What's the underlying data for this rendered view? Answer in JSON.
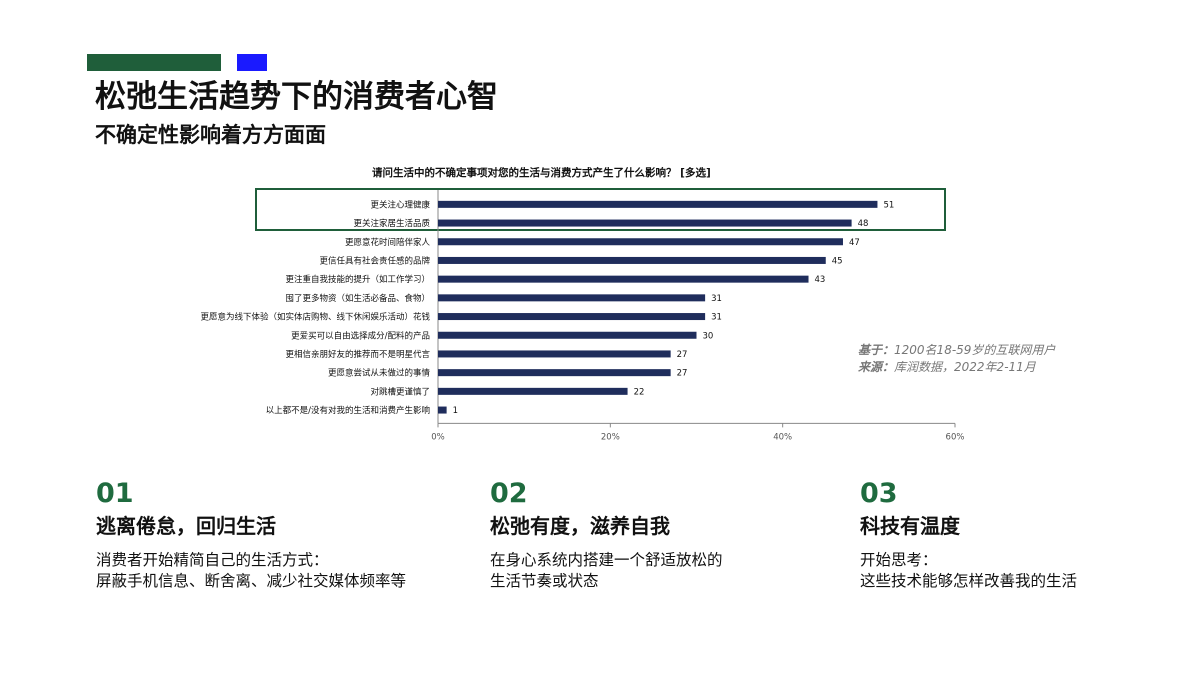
{
  "header": {
    "title": "松弛生活趋势下的消费者心智",
    "subtitle": "不确定性影响着方方面面"
  },
  "colors": {
    "accent_green": "#1f5e3a",
    "accent_blue": "#1a1aff",
    "bar": "#1f2d5c",
    "number_green": "#1f6b3f"
  },
  "note": {
    "base_label": "基于：",
    "base_text": "1200名18-59岁的互联网用户",
    "source_label": "来源：",
    "source_text": "库润数据，2022年2-11月"
  },
  "chart_data": {
    "type": "bar",
    "orientation": "horizontal",
    "title": "请问生活中的不确定事项对您的生活与消费方式产生了什么影响？ [多选]",
    "categories": [
      "更关注心理健康",
      "更关注家居生活品质",
      "更愿意花时间陪伴家人",
      "更信任具有社会责任感的品牌",
      "更注重自我技能的提升（如工作学习）",
      "囤了更多物资（如生活必备品、食物）",
      "更愿意为线下体验（如实体店购物、线下休闲娱乐活动）花钱",
      "更爱买可以自由选择成分/配料的产品",
      "更相信亲朋好友的推荐而不是明星代言",
      "更愿意尝试从未做过的事情",
      "对跳槽更谨慎了",
      "以上都不是/没有对我的生活和消费产生影响"
    ],
    "values": [
      51,
      48,
      47,
      45,
      43,
      31,
      31,
      30,
      27,
      27,
      22,
      1
    ],
    "xlim": [
      0,
      60
    ],
    "xticks": [
      "0%",
      "20%",
      "40%",
      "60%"
    ],
    "highlight": "top-2 rows boxed in green",
    "grid": false
  },
  "columns": [
    {
      "num": "01",
      "head": "逃离倦怠，回归生活",
      "line1": "消费者开始精简自己的生活方式：",
      "line2": "屏蔽手机信息、断舍离、减少社交媒体频率等"
    },
    {
      "num": "02",
      "head": "松弛有度，滋养自我",
      "line1": "在身心系统内搭建一个舒适放松的",
      "line2": "生活节奏或状态"
    },
    {
      "num": "03",
      "head": "科技有温度",
      "line1": "开始思考：",
      "line2": "这些技术能够怎样改善我的生活"
    }
  ]
}
